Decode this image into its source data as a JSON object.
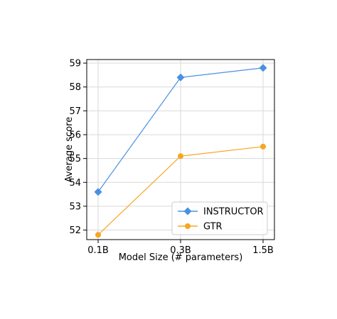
{
  "chart_data": {
    "type": "line",
    "title": "",
    "categories": [
      "0.1B",
      "0.3B",
      "1.5B"
    ],
    "xlabel": "Model Size (# parameters)",
    "ylabel": "Average score",
    "ylim": [
      51.6,
      59.15
    ],
    "yticks": [
      52,
      53,
      54,
      55,
      56,
      57,
      58,
      59
    ],
    "grid": true,
    "legend_position": "lower-right",
    "series": [
      {
        "name": "INSTRUCTOR",
        "values": [
          53.6,
          58.4,
          58.8
        ],
        "color": "#4a90e2",
        "marker": "diamond"
      },
      {
        "name": "GTR",
        "values": [
          51.8,
          55.1,
          55.5
        ],
        "color": "#f5a623",
        "marker": "circle"
      }
    ]
  }
}
